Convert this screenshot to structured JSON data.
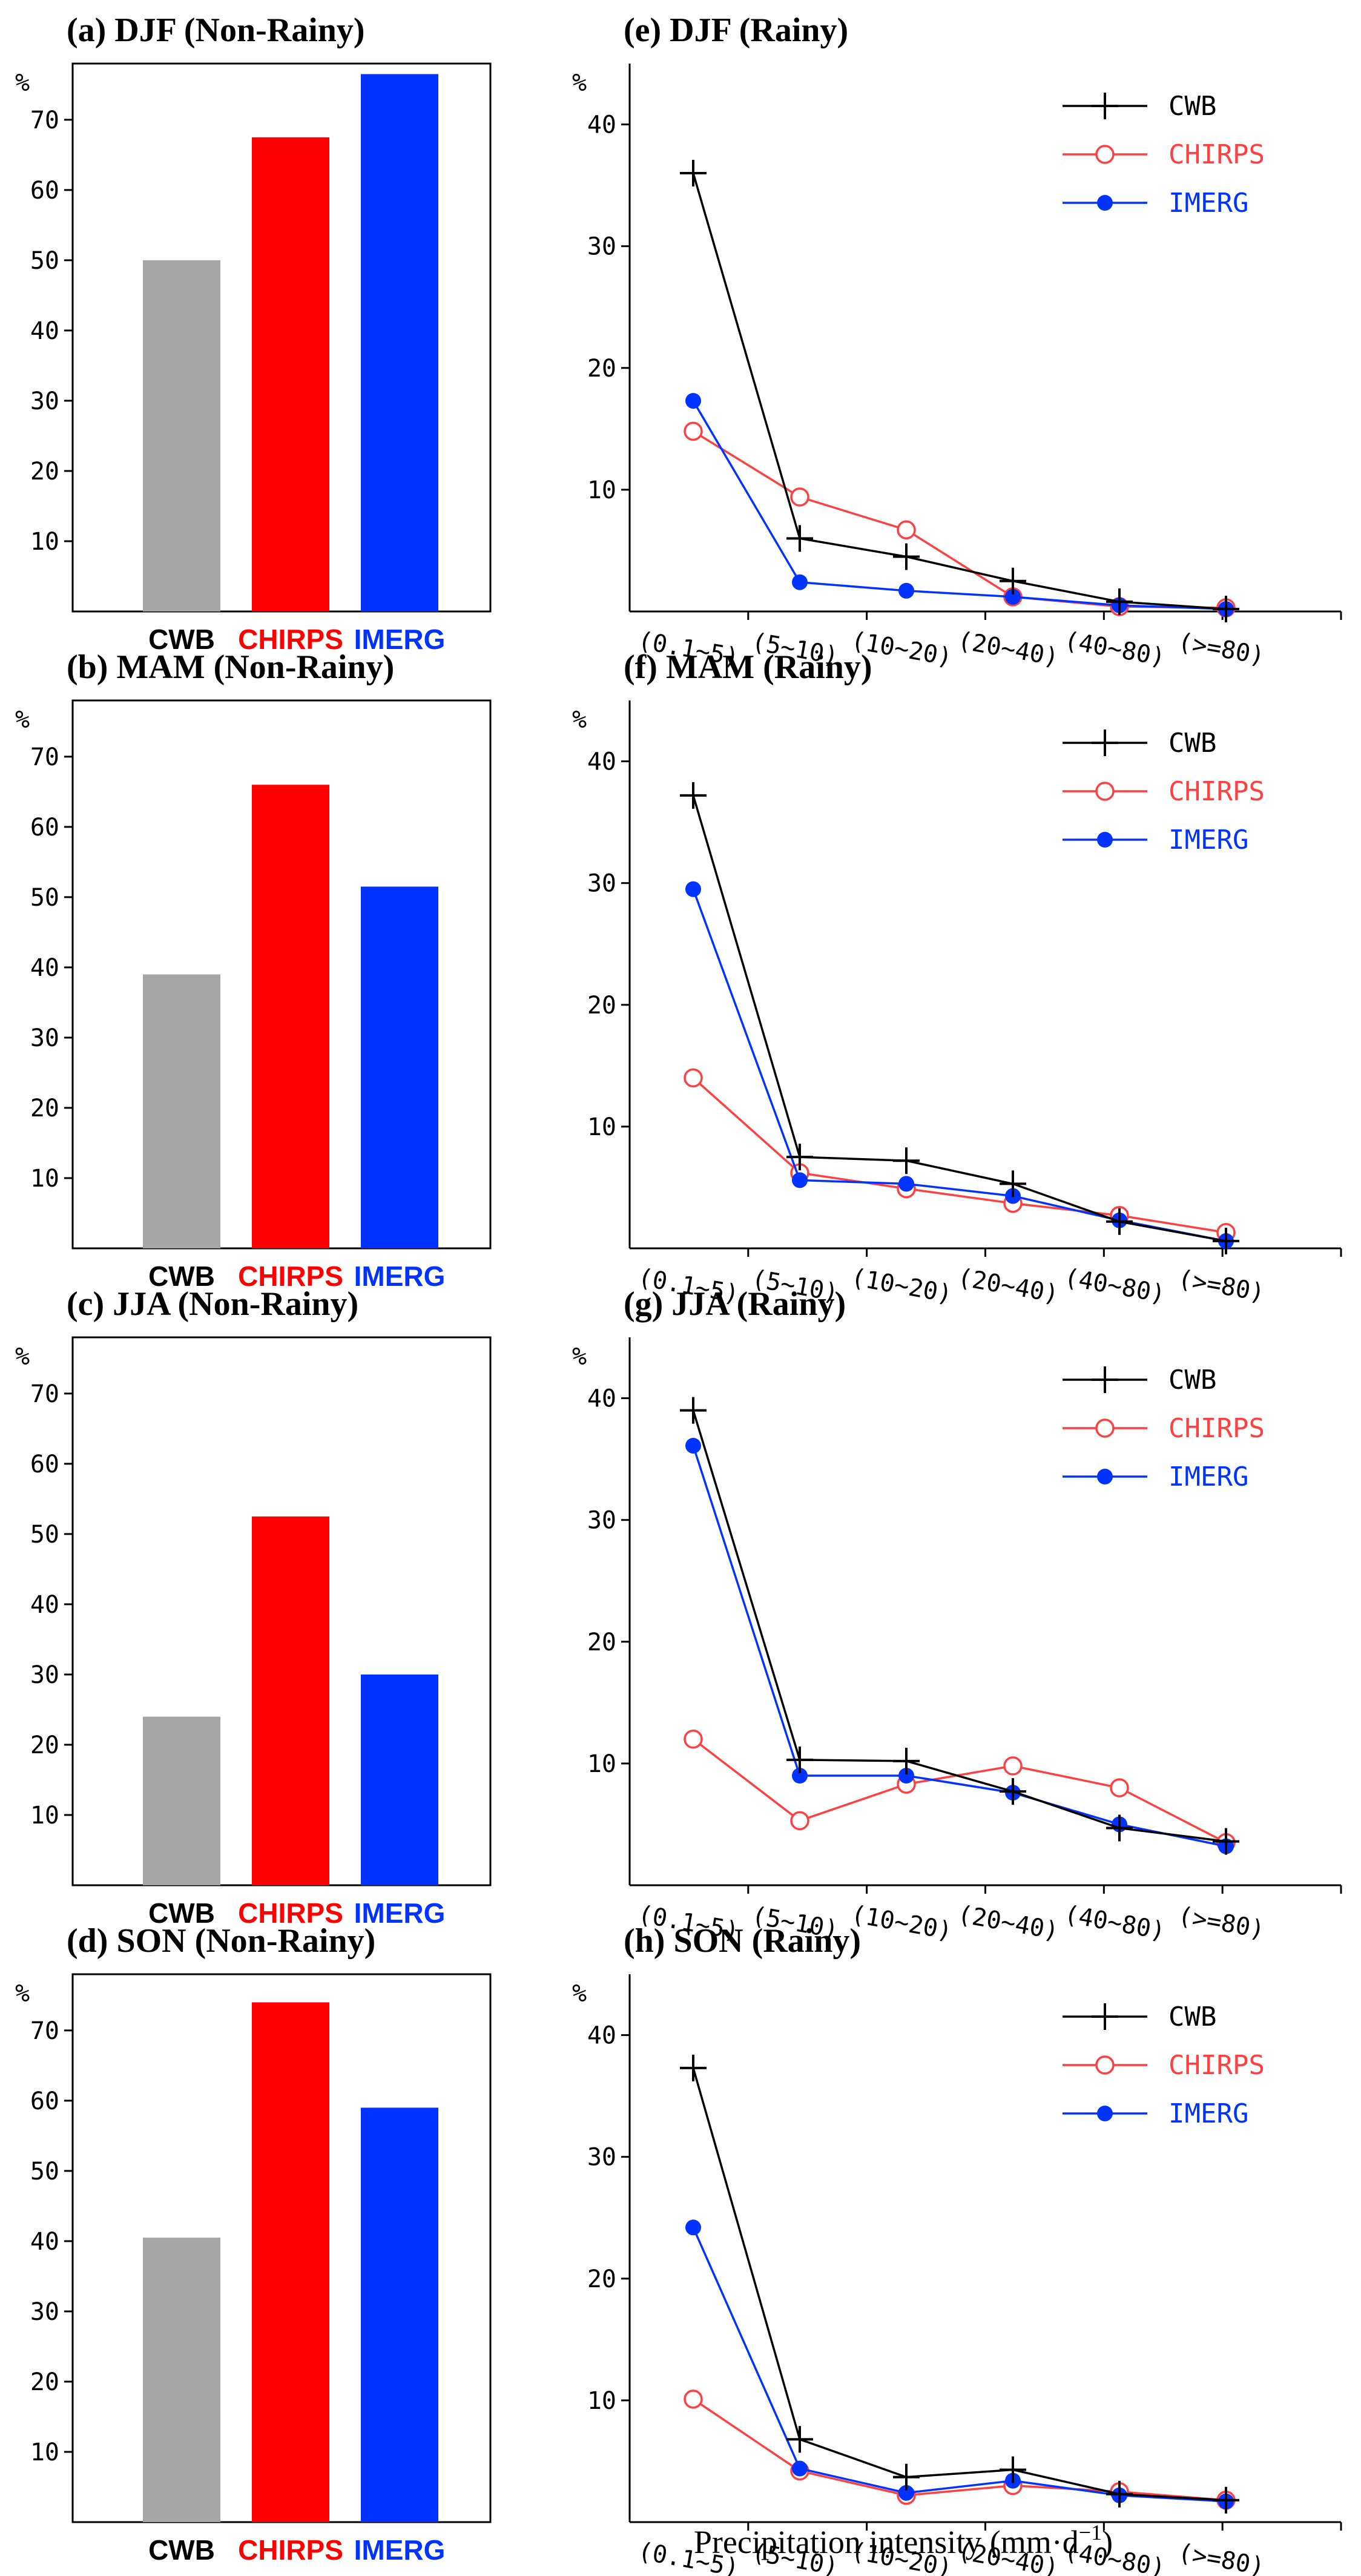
{
  "figure": {
    "xlabel": "Precipitation intensity (mm·d",
    "xlabel_exp": "−1",
    "xlabel_close": ")"
  },
  "colors": {
    "CWB_bar": "#a6a6a6",
    "CHIRPS_bar": "#ff0000",
    "IMERG_bar": "#0033ff",
    "CWB_line": "#000000",
    "CHIRPS_line": "#ff4040",
    "IMERG_line": "#0033ff",
    "CWB_label": "#000000",
    "CHIRPS_label": "#ff0000",
    "IMERG_label": "#0033ff"
  },
  "chart_data": [
    {
      "id": "a",
      "type": "bar",
      "title": "(a) DJF (Non-Rainy)",
      "ylabel": "%",
      "ylim": [
        0,
        78
      ],
      "yticks": [
        10,
        20,
        30,
        40,
        50,
        60,
        70
      ],
      "categories": [
        "CWB",
        "CHIRPS",
        "IMERG"
      ],
      "values": [
        50,
        67.5,
        76.5
      ]
    },
    {
      "id": "b",
      "type": "bar",
      "title": "(b) MAM (Non-Rainy)",
      "ylabel": "%",
      "ylim": [
        0,
        78
      ],
      "yticks": [
        10,
        20,
        30,
        40,
        50,
        60,
        70
      ],
      "categories": [
        "CWB",
        "CHIRPS",
        "IMERG"
      ],
      "values": [
        39,
        66,
        51.5
      ]
    },
    {
      "id": "c",
      "type": "bar",
      "title": "(c) JJA (Non-Rainy)",
      "ylabel": "%",
      "ylim": [
        0,
        78
      ],
      "yticks": [
        10,
        20,
        30,
        40,
        50,
        60,
        70
      ],
      "categories": [
        "CWB",
        "CHIRPS",
        "IMERG"
      ],
      "values": [
        24,
        52.5,
        30
      ]
    },
    {
      "id": "d",
      "type": "bar",
      "title": "(d) SON (Non-Rainy)",
      "ylabel": "%",
      "ylim": [
        0,
        78
      ],
      "yticks": [
        10,
        20,
        30,
        40,
        50,
        60,
        70
      ],
      "categories": [
        "CWB",
        "CHIRPS",
        "IMERG"
      ],
      "values": [
        40.5,
        74,
        59
      ]
    },
    {
      "id": "e",
      "type": "line",
      "title": "(e) DJF (Rainy)",
      "ylabel": "%",
      "ylim": [
        0,
        45
      ],
      "yticks": [
        10,
        20,
        30,
        40
      ],
      "categories": [
        "(0.1~5)",
        "(5~10)",
        "(10~20)",
        "(20~40)",
        "(40~80)",
        "(>=80)"
      ],
      "legend": "top-right",
      "series": [
        {
          "name": "CWB",
          "values": [
            36,
            6,
            4.5,
            2.5,
            0.8,
            0.2
          ]
        },
        {
          "name": "CHIRPS",
          "values": [
            14.8,
            9.4,
            6.7,
            1.2,
            0.4,
            0.3
          ]
        },
        {
          "name": "IMERG",
          "values": [
            17.3,
            2.4,
            1.7,
            1.2,
            0.5,
            0.2
          ]
        }
      ]
    },
    {
      "id": "f",
      "type": "line",
      "title": "(f) MAM (Rainy)",
      "ylabel": "%",
      "ylim": [
        0,
        45
      ],
      "yticks": [
        10,
        20,
        30,
        40
      ],
      "categories": [
        "(0.1~5)",
        "(5~10)",
        "(10~20)",
        "(20~40)",
        "(40~80)",
        "(>=80)"
      ],
      "legend": "top-right",
      "series": [
        {
          "name": "CWB",
          "values": [
            37.2,
            7.5,
            7.2,
            5.3,
            2.2,
            0.6
          ]
        },
        {
          "name": "CHIRPS",
          "values": [
            14,
            6.2,
            4.9,
            3.7,
            2.7,
            1.3
          ]
        },
        {
          "name": "IMERG",
          "values": [
            29.5,
            5.6,
            5.3,
            4.3,
            2.3,
            0.6
          ]
        }
      ]
    },
    {
      "id": "g",
      "type": "line",
      "title": "(g) JJA (Rainy)",
      "ylabel": "%",
      "ylim": [
        0,
        45
      ],
      "yticks": [
        10,
        20,
        30,
        40
      ],
      "categories": [
        "(0.1~5)",
        "(5~10)",
        "(10~20)",
        "(20~40)",
        "(40~80)",
        "(>=80)"
      ],
      "legend": "top-right",
      "series": [
        {
          "name": "CWB",
          "values": [
            39,
            10.3,
            10.2,
            7.7,
            4.7,
            3.6
          ]
        },
        {
          "name": "CHIRPS",
          "values": [
            12,
            5.3,
            8.3,
            9.8,
            8,
            3.5
          ]
        },
        {
          "name": "IMERG",
          "values": [
            36.1,
            9,
            9,
            7.6,
            5,
            3.2
          ]
        }
      ]
    },
    {
      "id": "h",
      "type": "line",
      "title": "(h) SON (Rainy)",
      "ylabel": "%",
      "ylim": [
        0,
        45
      ],
      "yticks": [
        10,
        20,
        30,
        40
      ],
      "categories": [
        "(0.1~5)",
        "(5~10)",
        "(10~20)",
        "(20~40)",
        "(40~80)",
        "(>=80)"
      ],
      "legend": "top-right",
      "series": [
        {
          "name": "CWB",
          "values": [
            37.3,
            6.8,
            3.7,
            4.3,
            2.3,
            1.8
          ]
        },
        {
          "name": "CHIRPS",
          "values": [
            10.1,
            4.2,
            2.2,
            3,
            2.5,
            1.8
          ]
        },
        {
          "name": "IMERG",
          "values": [
            24.2,
            4.4,
            2.4,
            3.4,
            2.2,
            1.7
          ]
        }
      ]
    }
  ]
}
